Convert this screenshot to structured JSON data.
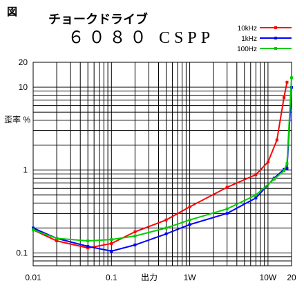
{
  "figure_label": "図",
  "chart_data": {
    "type": "line",
    "title": "チョークドライブ",
    "subtitle": "６０８０ CSPP",
    "xlabel": "出力",
    "ylabel": "歪率 %",
    "x_scale": "log",
    "y_scale": "log",
    "xlim": [
      0.01,
      20
    ],
    "ylim": [
      0.07,
      20
    ],
    "grid": true,
    "legend_position": "top-right",
    "x_ticks": [
      {
        "value": 0.01,
        "label": "0.01"
      },
      {
        "value": 0.1,
        "label": "0.1"
      },
      {
        "value": 1,
        "label": "1W"
      },
      {
        "value": 10,
        "label": "10W"
      },
      {
        "value": 20,
        "label": "20"
      }
    ],
    "y_ticks": [
      {
        "value": 0.1,
        "label": "0.1"
      },
      {
        "value": 1,
        "label": "1"
      },
      {
        "value": 10,
        "label": "10"
      },
      {
        "value": 20,
        "label": "20"
      }
    ],
    "series": [
      {
        "name": "10kHz",
        "color": "#ff0000",
        "points": [
          [
            0.01,
            0.19
          ],
          [
            0.02,
            0.14
          ],
          [
            0.05,
            0.115
          ],
          [
            0.1,
            0.13
          ],
          [
            0.2,
            0.18
          ],
          [
            0.5,
            0.25
          ],
          [
            1,
            0.36
          ],
          [
            3,
            0.62
          ],
          [
            7,
            0.88
          ],
          [
            10,
            1.25
          ],
          [
            13,
            2.3
          ],
          [
            16,
            7.5
          ],
          [
            17.5,
            11.5
          ]
        ]
      },
      {
        "name": "1kHz",
        "color": "#0000ff",
        "points": [
          [
            0.01,
            0.2
          ],
          [
            0.02,
            0.15
          ],
          [
            0.05,
            0.12
          ],
          [
            0.1,
            0.105
          ],
          [
            0.2,
            0.125
          ],
          [
            0.5,
            0.17
          ],
          [
            1,
            0.22
          ],
          [
            3,
            0.3
          ],
          [
            7,
            0.46
          ],
          [
            12,
            0.8
          ],
          [
            16,
            1.02
          ],
          [
            17.5,
            1.05
          ],
          [
            20,
            10
          ]
        ]
      },
      {
        "name": "100Hz",
        "color": "#00cc00",
        "points": [
          [
            0.01,
            0.19
          ],
          [
            0.02,
            0.15
          ],
          [
            0.05,
            0.14
          ],
          [
            0.1,
            0.145
          ],
          [
            0.2,
            0.16
          ],
          [
            0.5,
            0.2
          ],
          [
            1,
            0.25
          ],
          [
            3,
            0.34
          ],
          [
            7,
            0.5
          ],
          [
            12,
            0.78
          ],
          [
            16,
            0.98
          ],
          [
            17.5,
            1.2
          ],
          [
            20,
            13
          ]
        ]
      }
    ]
  }
}
